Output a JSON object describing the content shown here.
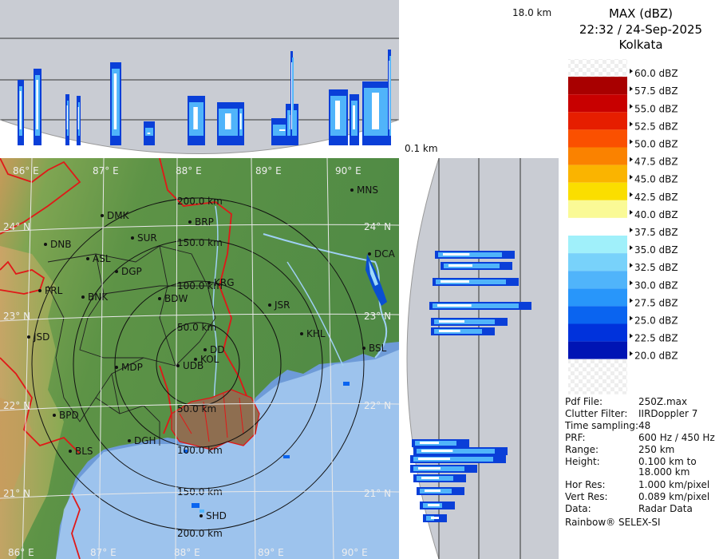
{
  "header": {
    "product": "MAX (dBZ)",
    "datetime": "22:32 / 24-Sep-2025",
    "station": "Kolkata"
  },
  "height_axis": {
    "max_label": "18.0 km",
    "min_label": "0.1 km"
  },
  "scale": {
    "levels": [
      {
        "label": "60.0 dBZ",
        "color": "#ffffff"
      },
      {
        "label": "57.5 dBZ",
        "color": "#a80000"
      },
      {
        "label": "55.0 dBZ",
        "color": "#c80000"
      },
      {
        "label": "52.5 dBZ",
        "color": "#e61e00"
      },
      {
        "label": "50.0 dBZ",
        "color": "#fa5000"
      },
      {
        "label": "47.5 dBZ",
        "color": "#fa8200"
      },
      {
        "label": "45.0 dBZ",
        "color": "#fab400"
      },
      {
        "label": "42.5 dBZ",
        "color": "#fade00"
      },
      {
        "label": "40.0 dBZ",
        "color": "#fafa96"
      },
      {
        "label": "37.5 dBZ",
        "color": "#ffffff"
      },
      {
        "label": "35.0 dBZ",
        "color": "#a0f0fa"
      },
      {
        "label": "32.5 dBZ",
        "color": "#78d2fa"
      },
      {
        "label": "30.0 dBZ",
        "color": "#50b4fa"
      },
      {
        "label": "27.5 dBZ",
        "color": "#2896fa"
      },
      {
        "label": "25.0 dBZ",
        "color": "#0a64f0"
      },
      {
        "label": "22.5 dBZ",
        "color": "#0032dc"
      },
      {
        "label": "20.0 dBZ",
        "color": "#0014b4"
      }
    ]
  },
  "metadata": [
    {
      "key": "Pdf File:",
      "value": "250Z.max"
    },
    {
      "key": "Clutter Filter:",
      "value": "IIRDoppler 7"
    },
    {
      "key": "Time sampling:",
      "value": "48"
    },
    {
      "key": "PRF:",
      "value": "600 Hz / 450 Hz"
    },
    {
      "key": "Range:",
      "value": "250 km"
    },
    {
      "key": "Height:",
      "value": "0.100 km to"
    },
    {
      "key": "",
      "value": "18.000 km"
    },
    {
      "key": "Hor Res:",
      "value": "1.000 km/pixel"
    },
    {
      "key": "Vert Res:",
      "value": "0.089 km/pixel"
    },
    {
      "key": "Data:",
      "value": "Radar Data"
    }
  ],
  "footer": "Rainbow® SELEX-SI",
  "longitudes": [
    "86° E",
    "87° E",
    "88° E",
    "89° E",
    "90° E"
  ],
  "latitudes": [
    "24° N",
    "23° N",
    "22° N",
    "21° N"
  ],
  "range_rings": [
    "50.0 km",
    "100.0 km",
    "150.0 km",
    "200.0 km"
  ],
  "cities": [
    {
      "name": "MNS"
    },
    {
      "name": "DMK"
    },
    {
      "name": "BRP"
    },
    {
      "name": "DNB"
    },
    {
      "name": "SUR"
    },
    {
      "name": "ASL"
    },
    {
      "name": "DGP"
    },
    {
      "name": "DCA"
    },
    {
      "name": "KRG"
    },
    {
      "name": "PRL"
    },
    {
      "name": "BNK"
    },
    {
      "name": "BDW"
    },
    {
      "name": "JSR"
    },
    {
      "name": "JSD"
    },
    {
      "name": "KHL"
    },
    {
      "name": "DD"
    },
    {
      "name": "BSL"
    },
    {
      "name": "KOL"
    },
    {
      "name": "MDP"
    },
    {
      "name": "UDB"
    },
    {
      "name": "BPD"
    },
    {
      "name": "DGH"
    },
    {
      "name": "BLS"
    },
    {
      "name": "SHD"
    }
  ]
}
